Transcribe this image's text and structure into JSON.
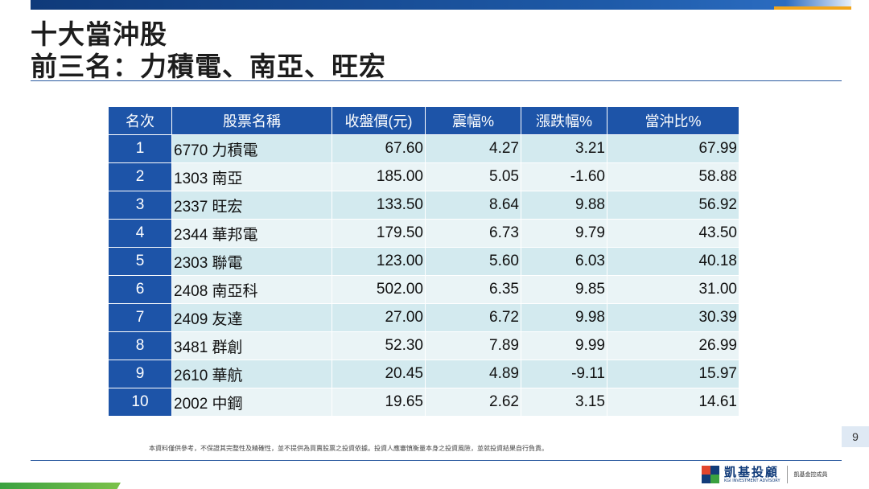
{
  "title": {
    "line1": "十大當沖股",
    "line2": "前三名：力積電、南亞、旺宏"
  },
  "table": {
    "headers": [
      "名次",
      "股票名稱",
      "收盤價(元)",
      "震幅%",
      "漲跌幅%",
      "當沖比%"
    ],
    "rows": [
      [
        "1",
        "6770 力積電",
        "67.60",
        "4.27",
        "3.21",
        "67.99"
      ],
      [
        "2",
        "1303 南亞",
        "185.00",
        "5.05",
        "-1.60",
        "58.88"
      ],
      [
        "3",
        "2337 旺宏",
        "133.50",
        "8.64",
        "9.88",
        "56.92"
      ],
      [
        "4",
        "2344 華邦電",
        "179.50",
        "6.73",
        "9.79",
        "43.50"
      ],
      [
        "5",
        "2303 聯電",
        "123.00",
        "5.60",
        "6.03",
        "40.18"
      ],
      [
        "6",
        "2408 南亞科",
        "502.00",
        "6.35",
        "9.85",
        "31.00"
      ],
      [
        "7",
        "2409 友達",
        "27.00",
        "6.72",
        "9.98",
        "30.39"
      ],
      [
        "8",
        "3481 群創",
        "52.30",
        "7.89",
        "9.99",
        "26.99"
      ],
      [
        "9",
        "2610 華航",
        "20.45",
        "4.89",
        "-9.11",
        "15.97"
      ],
      [
        "10",
        "2002 中鋼",
        "19.65",
        "2.62",
        "3.15",
        "14.61"
      ]
    ]
  },
  "footer": {
    "page_number": "9",
    "disclaimer": "本資料僅供參考，不保證其完整性及精確性，並不提供為買賣股票之投資依據。投資人應審慎衡量本身之投資風險，並就投資結果自行負責。",
    "logo_cn": "凱基投顧",
    "logo_en": "KGI INVESTMENT ADVISORY",
    "logo_sub": "凱基金控成員"
  },
  "colors": {
    "header_blue": "#1d54a8",
    "row_light": "#d3eaef",
    "row_lighter": "#eaf4f6",
    "accent_gold": "#f2a51a",
    "accent_green": "#3aa140"
  }
}
